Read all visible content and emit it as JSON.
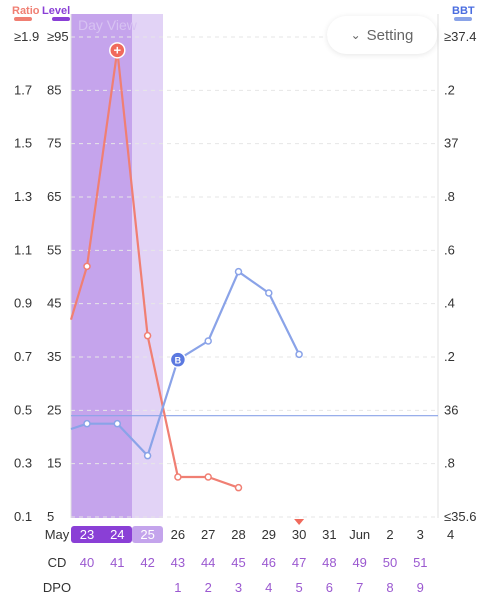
{
  "headers": {
    "left_ratio": "Ratio",
    "left_level": "Level",
    "right_bbt": "BBT",
    "ratio_color": "#f07f73",
    "level_color": "#8a3fd6"
  },
  "view_label": "Day View",
  "setting_button": {
    "label": "Setting",
    "icon": "chevron-down-icon"
  },
  "axes": {
    "ratio_ticks": [
      "≥1.9",
      "1.7",
      "1.5",
      "1.3",
      "1.1",
      "0.9",
      "0.7",
      "0.5",
      "0.3",
      "0.1"
    ],
    "level_ticks": [
      "≥95",
      "85",
      "75",
      "65",
      "55",
      "45",
      "35",
      "25",
      "15",
      "5"
    ],
    "bbt_ticks": [
      "≥37.4",
      ".2",
      "37",
      ".8",
      ".6",
      ".4",
      ".2",
      "36",
      ".8",
      "≤35.6"
    ]
  },
  "chart_data": {
    "type": "line",
    "x": [
      "May 23",
      "May 24",
      "May 25",
      "May 26",
      "May 27",
      "May 28",
      "May 29",
      "May 30",
      "May 31",
      "Jun 1",
      "Jun 2",
      "Jun 3",
      "Jun 4"
    ],
    "ratio_ylim": [
      0.1,
      1.9
    ],
    "bbt_ylim": [
      35.6,
      37.4
    ],
    "series": [
      {
        "color": "#f07f73",
        "axis": "ratio",
        "start_x": 22.5,
        "points": [
          [
            22.5,
            0.84
          ],
          [
            23,
            1.04
          ],
          [
            24,
            1.85
          ],
          [
            25,
            0.78
          ],
          [
            26,
            0.25
          ],
          [
            27,
            0.25
          ],
          [
            28,
            0.21
          ]
        ],
        "marker_x": [
          23,
          25,
          26,
          27,
          28
        ],
        "highlight": {
          "x": 24,
          "symbol": "+"
        }
      },
      {
        "color": "#8aa3e8",
        "axis": "bbt",
        "points": [
          [
            22.5,
            35.93
          ],
          [
            23,
            35.95
          ],
          [
            24,
            35.95
          ],
          [
            25,
            35.83
          ],
          [
            26,
            36.19
          ],
          [
            27,
            36.26
          ],
          [
            28,
            36.52
          ],
          [
            29,
            36.44
          ],
          [
            30,
            36.21
          ]
        ],
        "marker_x": [
          23,
          24,
          25,
          27,
          28,
          29,
          30
        ],
        "highlight": {
          "x": 26,
          "symbol": "B"
        }
      }
    ],
    "coverline": 35.98,
    "shaded_days": {
      "dark": [
        23,
        24
      ],
      "light": [
        25
      ]
    }
  },
  "dates": [
    {
      "label": "May",
      "highlight": false
    },
    {
      "label": "23",
      "highlight": true
    },
    {
      "label": "24",
      "highlight": true
    },
    {
      "label": "25",
      "highlight": true,
      "light": true
    },
    {
      "label": "26",
      "highlight": false
    },
    {
      "label": "27",
      "highlight": false
    },
    {
      "label": "28",
      "highlight": false
    },
    {
      "label": "29",
      "highlight": false
    },
    {
      "label": "30",
      "highlight": false,
      "marker": true
    },
    {
      "label": "31",
      "highlight": false
    },
    {
      "label": "Jun",
      "highlight": false
    },
    {
      "label": "2",
      "highlight": false
    },
    {
      "label": "3",
      "highlight": false
    },
    {
      "label": "4",
      "highlight": false
    }
  ],
  "cd_row": {
    "label": "CD",
    "values": [
      "40",
      "41",
      "42",
      "43",
      "44",
      "45",
      "46",
      "47",
      "48",
      "49",
      "50",
      "51"
    ]
  },
  "dpo_row": {
    "label": "DPO",
    "values": [
      "",
      "",
      "",
      "1",
      "2",
      "3",
      "4",
      "5",
      "6",
      "7",
      "8",
      "9"
    ]
  }
}
